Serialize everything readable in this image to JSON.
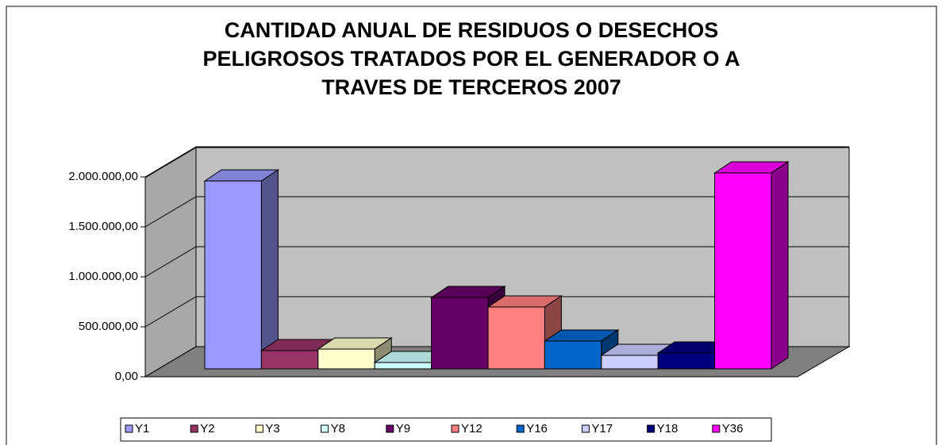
{
  "chart_data": {
    "type": "bar3d",
    "title": [
      "CANTIDAD ANUAL DE RESIDUOS O DESECHOS",
      "PELIGROSOS TRATADOS POR EL GENERADOR O A",
      "TRAVES DE TERCEROS 2007"
    ],
    "series": [
      {
        "name": "Y1",
        "color": "#9999ff",
        "values": [
          1880000
        ]
      },
      {
        "name": "Y2",
        "color": "#993366",
        "values": [
          183000
        ]
      },
      {
        "name": "Y3",
        "color": "#ffffcc",
        "values": [
          198000
        ]
      },
      {
        "name": "Y8",
        "color": "#ccffff",
        "values": [
          63000
        ]
      },
      {
        "name": "Y9",
        "color": "#660066",
        "values": [
          714000
        ]
      },
      {
        "name": "Y12",
        "color": "#ff8080",
        "values": [
          619000
        ]
      },
      {
        "name": "Y16",
        "color": "#0066cc",
        "values": [
          278000
        ]
      },
      {
        "name": "Y17",
        "color": "#ccccff",
        "values": [
          135000
        ]
      },
      {
        "name": "Y18",
        "color": "#000080",
        "values": [
          159000
        ]
      },
      {
        "name": "Y36",
        "color": "#ff00ff",
        "values": [
          1960000
        ]
      }
    ],
    "ylim": [
      0,
      2000000
    ],
    "yticks": [
      {
        "value": 0,
        "label": "0,00"
      },
      {
        "value": 500000,
        "label": "500.000,00"
      },
      {
        "value": 1000000,
        "label": "1.000.000,00"
      },
      {
        "value": 1500000,
        "label": "1.500.000,00"
      },
      {
        "value": 2000000,
        "label": "2.000.000,00"
      }
    ],
    "grid": true,
    "legend": "bottom"
  }
}
